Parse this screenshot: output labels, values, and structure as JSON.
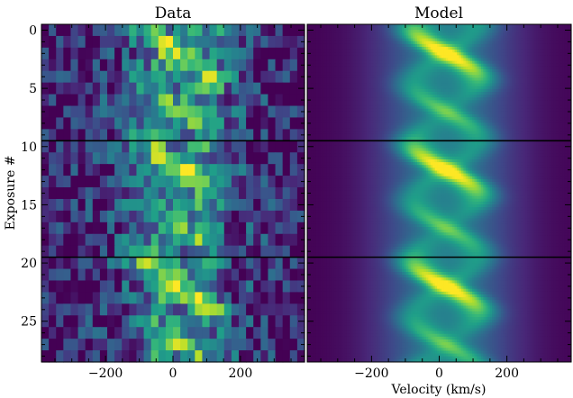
{
  "chart_data": [
    {
      "type": "heatmap",
      "title": "Data",
      "xlabel": "",
      "ylabel": "Exposure #",
      "xlim": [
        -390,
        390
      ],
      "ylim": [
        28.5,
        -0.5
      ],
      "xticks": [
        -200,
        0,
        200
      ],
      "yticks": [
        0,
        5,
        10,
        15,
        20,
        25
      ],
      "separators_y": [
        9.5,
        19.5
      ],
      "n_exposures": 29,
      "n_velocity_bins": 36,
      "colormap": "viridis",
      "description": "Noisy line profile; bright emission near 0 km/s drifting between about -80 and +120 km/s across exposures, strongest near exposures 1-3, 12-14 and 21-23"
    },
    {
      "type": "heatmap",
      "title": "Model",
      "xlabel": "Velocity (km/s)",
      "ylabel": "",
      "xlim": [
        -390,
        390
      ],
      "ylim": [
        28.5,
        -0.5
      ],
      "xticks": [
        -200,
        0,
        200
      ],
      "yticks": [
        0,
        5,
        10,
        15,
        20,
        25
      ],
      "separators_y": [
        9.5,
        19.5
      ],
      "colormap": "viridis",
      "description": "Smooth model: bright peak oscillating between about -60 and +120 km/s with a 10-exposure period; peaks near exposures 2, 12.5, 22.5"
    }
  ],
  "colors": {
    "viridis": [
      "#440154",
      "#482878",
      "#3e4989",
      "#31688e",
      "#26828e",
      "#1f9e89",
      "#35b779",
      "#6ece58",
      "#b5de2b",
      "#fde725"
    ],
    "separator": "#000000"
  }
}
